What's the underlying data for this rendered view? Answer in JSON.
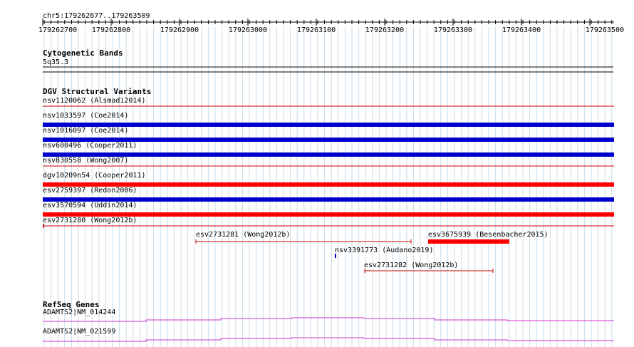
{
  "browser": {
    "location": "chr5:179262677..179263509",
    "ruler_ticks": [
      "179262700",
      "179262800",
      "179262900",
      "179263000",
      "179263100",
      "179263200",
      "179263300",
      "179263400",
      "179263500"
    ]
  },
  "tracks": {
    "cytoband": {
      "title": "Cytogenetic Bands",
      "band_label": "5q35.3"
    },
    "dgv": {
      "title": "DGV Structural Variants",
      "full_rows": [
        {
          "label": "nsv1120062 (Alsmadi2014)",
          "color": "#cc0000",
          "type": "thin"
        },
        {
          "label": "nsv1033597 (Coe2014)",
          "color": "#0000cc",
          "type": "thick"
        },
        {
          "label": "nsv1016097 (Coe2014)",
          "color": "#0000cc",
          "type": "thick"
        },
        {
          "label": "nsv600496 (Cooper2011)",
          "color": "#0000cc",
          "type": "thick"
        },
        {
          "label": "nsv830558 (Wong2007)",
          "color": "#cc0000",
          "type": "thin"
        },
        {
          "label": "dgv10209n54 (Cooper2011)",
          "color": "#ff0000",
          "type": "thick"
        },
        {
          "label": "esv2759397 (Redon2006)",
          "color": "#0000cc",
          "type": "thick"
        },
        {
          "label": "esv3570594 (Uddin2014)",
          "color": "#ff0000",
          "type": "thick"
        },
        {
          "label": "esv2731280 (Wong2012b)",
          "color": "#cc0000",
          "type": "thin"
        }
      ],
      "partial_features": [
        {
          "label": "esv2731281 (Wong2012b)",
          "color": "#cc0000",
          "type": "span"
        },
        {
          "label": "esv3675939 (Besenbacher2015)",
          "color": "#ff0000",
          "type": "thick"
        },
        {
          "label": "nsv3391773 (Audano2019)",
          "color": "#0000cc",
          "type": "tick"
        },
        {
          "label": "esv2731282 (Wong2012b)",
          "color": "#cc0000",
          "type": "span"
        }
      ]
    },
    "refseq": {
      "title": "RefSeq Genes",
      "genes": [
        {
          "label": "ADAMTS2|NM_014244"
        },
        {
          "label": "ADAMTS2|NM_021599"
        }
      ],
      "gene_color": "#cc33cc"
    }
  }
}
